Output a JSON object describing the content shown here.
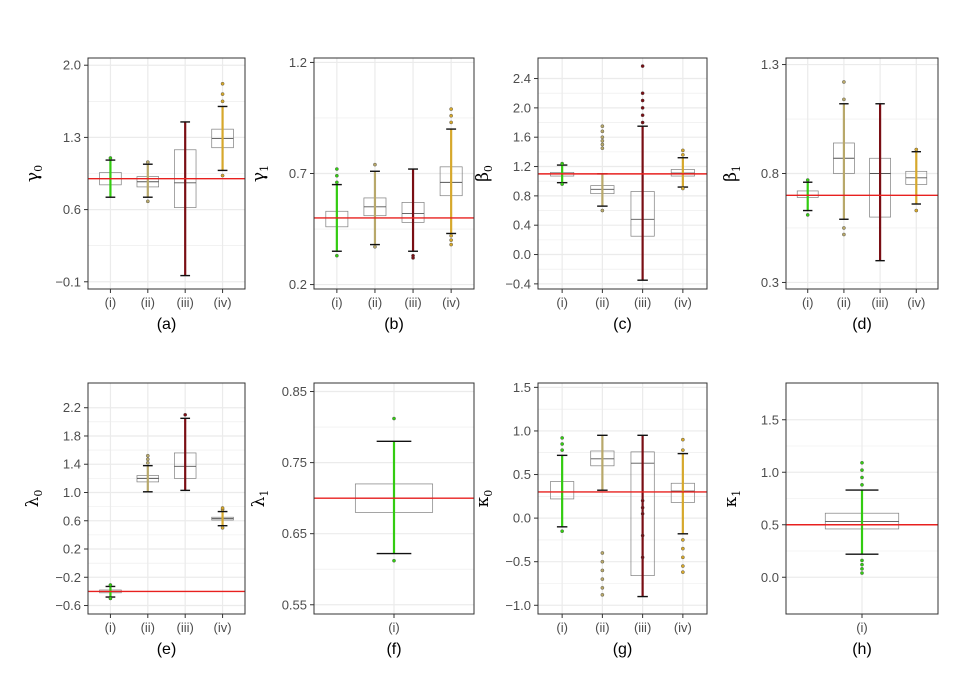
{
  "colors": {
    "reference_line": "#e8201f",
    "grid": "#ebebeb",
    "panel_border": "#333333",
    "box_border": "#7f7f7f",
    "method_i": "#33cc11",
    "method_ii": "#b8a86a",
    "method_iii": "#7a0e14",
    "method_iv": "#d6a82c"
  },
  "chart_data": [
    {
      "type": "box",
      "panel_label": "(a)",
      "ylabel": "γ",
      "ysub": "0",
      "ylim": [
        -0.17,
        2.07
      ],
      "yticks": [
        -0.1,
        0.6,
        1.3,
        2.0
      ],
      "ytick_labels": [
        "−0.1",
        "0.6",
        "1.3",
        "2.0"
      ],
      "reference": 0.9,
      "categories": [
        "(i)",
        "(ii)",
        "(iii)",
        "(iv)"
      ],
      "boxes": [
        {
          "min": 0.72,
          "q1": 0.84,
          "median": 0.9,
          "q3": 0.96,
          "max": 1.08,
          "outliers": [
            1.1
          ],
          "color": "method_i"
        },
        {
          "min": 0.72,
          "q1": 0.82,
          "median": 0.87,
          "q3": 0.92,
          "max": 1.04,
          "outliers": [
            0.68,
            1.06
          ],
          "color": "method_ii"
        },
        {
          "min": -0.04,
          "q1": 0.62,
          "median": 0.86,
          "q3": 1.18,
          "max": 1.45,
          "outliers": [],
          "color": "method_iii"
        },
        {
          "min": 0.98,
          "q1": 1.2,
          "median": 1.29,
          "q3": 1.38,
          "max": 1.6,
          "outliers": [
            0.93,
            1.65,
            1.72,
            1.82
          ],
          "color": "method_iv"
        }
      ]
    },
    {
      "type": "box",
      "panel_label": "(b)",
      "ylabel": "γ",
      "ysub": "1",
      "ylim": [
        0.18,
        1.22
      ],
      "yticks": [
        0.2,
        0.7,
        1.2
      ],
      "ytick_labels": [
        "0.2",
        "0.7",
        "1.2"
      ],
      "reference": 0.5,
      "categories": [
        "(i)",
        "(ii)",
        "(iii)",
        "(iv)"
      ],
      "boxes": [
        {
          "min": 0.35,
          "q1": 0.46,
          "median": 0.5,
          "q3": 0.53,
          "max": 0.65,
          "outliers": [
            0.33,
            0.66,
            0.69,
            0.72
          ],
          "color": "method_i"
        },
        {
          "min": 0.38,
          "q1": 0.51,
          "median": 0.55,
          "q3": 0.59,
          "max": 0.71,
          "outliers": [
            0.37,
            0.74
          ],
          "color": "method_ii"
        },
        {
          "min": 0.35,
          "q1": 0.48,
          "median": 0.52,
          "q3": 0.57,
          "max": 0.72,
          "outliers": [
            0.32,
            0.33
          ],
          "color": "method_iii"
        },
        {
          "min": 0.43,
          "q1": 0.6,
          "median": 0.66,
          "q3": 0.73,
          "max": 0.9,
          "outliers": [
            0.38,
            0.4,
            0.42,
            0.93,
            0.96,
            0.99
          ],
          "color": "method_iv"
        }
      ]
    },
    {
      "type": "box",
      "panel_label": "(c)",
      "ylabel": "β",
      "ysub": "0",
      "ylim": [
        -0.47,
        2.68
      ],
      "yticks": [
        -0.4,
        0.0,
        0.4,
        0.8,
        1.2,
        1.6,
        2.0,
        2.4
      ],
      "ytick_labels": [
        "−0.4",
        "0.0",
        "0.4",
        "0.8",
        "1.2",
        "1.6",
        "2.0",
        "2.4"
      ],
      "reference": 1.1,
      "categories": [
        "(i)",
        "(ii)",
        "(iii)",
        "(iv)"
      ],
      "boxes": [
        {
          "min": 0.98,
          "q1": 1.07,
          "median": 1.1,
          "q3": 1.12,
          "max": 1.22,
          "outliers": [
            0.96,
            1.24
          ],
          "color": "method_i"
        },
        {
          "min": 0.66,
          "q1": 0.83,
          "median": 0.89,
          "q3": 0.94,
          "max": 1.1,
          "outliers": [
            0.6,
            1.45,
            1.5,
            1.55,
            1.6,
            1.68,
            1.75
          ],
          "color": "method_ii"
        },
        {
          "min": -0.35,
          "q1": 0.25,
          "median": 0.48,
          "q3": 0.86,
          "max": 1.75,
          "outliers": [
            1.8,
            1.9,
            2.0,
            2.1,
            2.2,
            2.57
          ],
          "color": "method_iii"
        },
        {
          "min": 0.92,
          "q1": 1.07,
          "median": 1.11,
          "q3": 1.16,
          "max": 1.32,
          "outliers": [
            0.9,
            1.36,
            1.42
          ],
          "color": "method_iv"
        }
      ]
    },
    {
      "type": "box",
      "panel_label": "(d)",
      "ylabel": "β",
      "ysub": "1",
      "ylim": [
        0.27,
        1.33
      ],
      "yticks": [
        0.3,
        0.8,
        1.3
      ],
      "ytick_labels": [
        "0.3",
        "0.8",
        "1.3"
      ],
      "reference": 0.7,
      "categories": [
        "(i)",
        "(ii)",
        "(iii)",
        "(iv)"
      ],
      "boxes": [
        {
          "min": 0.63,
          "q1": 0.69,
          "median": 0.7,
          "q3": 0.72,
          "max": 0.76,
          "outliers": [
            0.61,
            0.77
          ],
          "color": "method_i"
        },
        {
          "min": 0.59,
          "q1": 0.8,
          "median": 0.87,
          "q3": 0.94,
          "max": 1.12,
          "outliers": [
            0.52,
            0.55,
            1.14,
            1.22
          ],
          "color": "method_ii"
        },
        {
          "min": 0.4,
          "q1": 0.6,
          "median": 0.8,
          "q3": 0.87,
          "max": 1.12,
          "outliers": [],
          "color": "method_iii"
        },
        {
          "min": 0.66,
          "q1": 0.75,
          "median": 0.78,
          "q3": 0.81,
          "max": 0.9,
          "outliers": [
            0.63,
            0.91
          ],
          "color": "method_iv"
        }
      ]
    },
    {
      "type": "box",
      "panel_label": "(e)",
      "ylabel": "λ",
      "ysub": "0",
      "ylim": [
        -0.72,
        2.55
      ],
      "yticks": [
        -0.6,
        -0.2,
        0.2,
        0.6,
        1.0,
        1.4,
        1.8,
        2.2
      ],
      "ytick_labels": [
        "−0.6",
        "−0.2",
        "0.2",
        "0.6",
        "1.0",
        "1.4",
        "1.8",
        "2.2"
      ],
      "reference": -0.4,
      "categories": [
        "(i)",
        "(ii)",
        "(iii)",
        "(iv)"
      ],
      "boxes": [
        {
          "min": -0.48,
          "q1": -0.42,
          "median": -0.4,
          "q3": -0.38,
          "max": -0.33,
          "outliers": [
            -0.5,
            -0.31
          ],
          "color": "method_i"
        },
        {
          "min": 1.01,
          "q1": 1.15,
          "median": 1.2,
          "q3": 1.24,
          "max": 1.38,
          "outliers": [
            1.42,
            1.47,
            1.52
          ],
          "color": "method_ii"
        },
        {
          "min": 1.03,
          "q1": 1.2,
          "median": 1.37,
          "q3": 1.56,
          "max": 2.05,
          "outliers": [
            2.1
          ],
          "color": "method_iii"
        },
        {
          "min": 0.53,
          "q1": 0.61,
          "median": 0.63,
          "q3": 0.65,
          "max": 0.73,
          "outliers": [
            0.5,
            0.76,
            0.78
          ],
          "color": "method_iv"
        }
      ]
    },
    {
      "type": "box",
      "panel_label": "(f)",
      "ylabel": "λ",
      "ysub": "1",
      "ylim": [
        0.537,
        0.862
      ],
      "yticks": [
        0.55,
        0.65,
        0.75,
        0.85
      ],
      "ytick_labels": [
        "0.55",
        "0.65",
        "0.75",
        "0.85"
      ],
      "reference": 0.7,
      "categories": [
        "(i)"
      ],
      "boxes": [
        {
          "min": 0.622,
          "q1": 0.68,
          "median": 0.7,
          "q3": 0.72,
          "max": 0.78,
          "outliers": [
            0.612,
            0.812
          ],
          "color": "method_i"
        }
      ]
    },
    {
      "type": "box",
      "panel_label": "(g)",
      "ylabel": "κ",
      "ysub": "0",
      "ylim": [
        -1.1,
        1.55
      ],
      "yticks": [
        -1.0,
        -0.5,
        0.0,
        0.5,
        1.0,
        1.5
      ],
      "ytick_labels": [
        "−1.0",
        "−0.5",
        "0.0",
        "0.5",
        "1.0",
        "1.5"
      ],
      "reference": 0.3,
      "categories": [
        "(i)",
        "(ii)",
        "(iii)",
        "(iv)"
      ],
      "boxes": [
        {
          "min": -0.1,
          "q1": 0.22,
          "median": 0.3,
          "q3": 0.42,
          "max": 0.72,
          "outliers": [
            -0.15,
            0.78,
            0.85,
            0.92
          ],
          "color": "method_i"
        },
        {
          "min": 0.32,
          "q1": 0.6,
          "median": 0.68,
          "q3": 0.77,
          "max": 0.95,
          "outliers": [
            -0.88,
            -0.8,
            -0.7,
            -0.6,
            -0.5,
            -0.4
          ],
          "color": "method_ii"
        },
        {
          "min": -0.9,
          "q1": -0.66,
          "median": 0.63,
          "q3": 0.76,
          "max": 0.95,
          "outliers": [
            -0.45,
            -0.2,
            0.05,
            0.12,
            0.2
          ],
          "color": "method_iii"
        },
        {
          "min": -0.18,
          "q1": 0.18,
          "median": 0.31,
          "q3": 0.4,
          "max": 0.74,
          "outliers": [
            -0.25,
            -0.35,
            -0.45,
            -0.55,
            -0.62,
            0.78,
            0.9
          ],
          "color": "method_iv"
        }
      ]
    },
    {
      "type": "box",
      "panel_label": "(h)",
      "ylabel": "κ",
      "ysub": "1",
      "ylim": [
        -0.35,
        1.85
      ],
      "yticks": [
        0.0,
        0.5,
        1.0,
        1.5
      ],
      "ytick_labels": [
        "0.0",
        "0.5",
        "1.0",
        "1.5"
      ],
      "reference": 0.5,
      "categories": [
        "(i)"
      ],
      "boxes": [
        {
          "min": 0.22,
          "q1": 0.46,
          "median": 0.53,
          "q3": 0.61,
          "max": 0.83,
          "outliers": [
            0.04,
            0.08,
            0.12,
            0.16,
            0.88,
            0.95,
            1.02,
            1.09
          ],
          "color": "method_i"
        }
      ]
    }
  ]
}
